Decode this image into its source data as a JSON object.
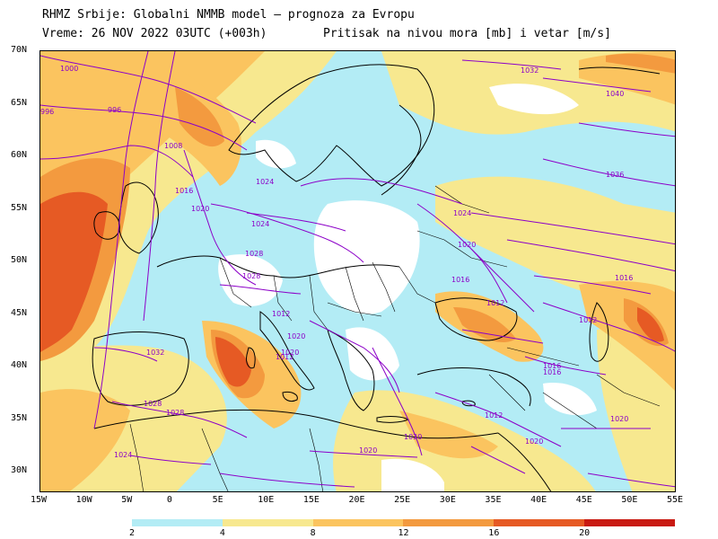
{
  "header": {
    "line1": "RHMZ Srbije: Globalni NMMB model — prognoza za Evropu",
    "line2_left": "Vreme: 26 NOV 2022 03UTC (+003h)",
    "line2_right": "Pritisak na nivou mora [mb] i vetar [m/s]"
  },
  "axes": {
    "latitude_labels": [
      "70N",
      "65N",
      "60N",
      "55N",
      "50N",
      "45N",
      "40N",
      "35N",
      "30N"
    ],
    "longitude_labels": [
      "15W",
      "10W",
      "5W",
      "0",
      "5E",
      "10E",
      "15E",
      "20E",
      "25E",
      "30E",
      "35E",
      "40E",
      "45E",
      "50E",
      "55E"
    ]
  },
  "isobar_labels": [
    {
      "text": "1000"
    },
    {
      "text": "996"
    },
    {
      "text": "996"
    },
    {
      "text": "1008"
    },
    {
      "text": "1016"
    },
    {
      "text": "1020"
    },
    {
      "text": "1024"
    },
    {
      "text": "1024"
    },
    {
      "text": "1028"
    },
    {
      "text": "1032"
    },
    {
      "text": "1028"
    },
    {
      "text": "1028"
    },
    {
      "text": "1024"
    },
    {
      "text": "1020"
    },
    {
      "text": "1020"
    },
    {
      "text": "1012"
    },
    {
      "text": "1012"
    },
    {
      "text": "1020"
    },
    {
      "text": "1024"
    },
    {
      "text": "1020"
    },
    {
      "text": "1016"
    },
    {
      "text": "1012"
    },
    {
      "text": "1012"
    },
    {
      "text": "1016"
    },
    {
      "text": "1020"
    },
    {
      "text": "1012"
    },
    {
      "text": "1016"
    },
    {
      "text": "1020"
    },
    {
      "text": "1020"
    },
    {
      "text": "1032"
    },
    {
      "text": "1040"
    },
    {
      "text": "1036"
    },
    {
      "text": "1028"
    },
    {
      "text": "1016"
    }
  ],
  "legend": {
    "ticks": [
      "2",
      "4",
      "8",
      "12",
      "16",
      "20"
    ],
    "colors": [
      "#b3ecf5",
      "#f7e88f",
      "#fbc45f",
      "#f39a3f",
      "#e65a24",
      "#c91a12"
    ]
  },
  "colors": {
    "calm": "#ffffff",
    "low": "#b3ecf5",
    "mid": "#f7e88f",
    "midhigh": "#fbc45f",
    "high": "#f39a3f",
    "veryhigh": "#e65a24",
    "extreme": "#c91a12",
    "isobar": "#8c00c8",
    "coast": "#000000"
  }
}
